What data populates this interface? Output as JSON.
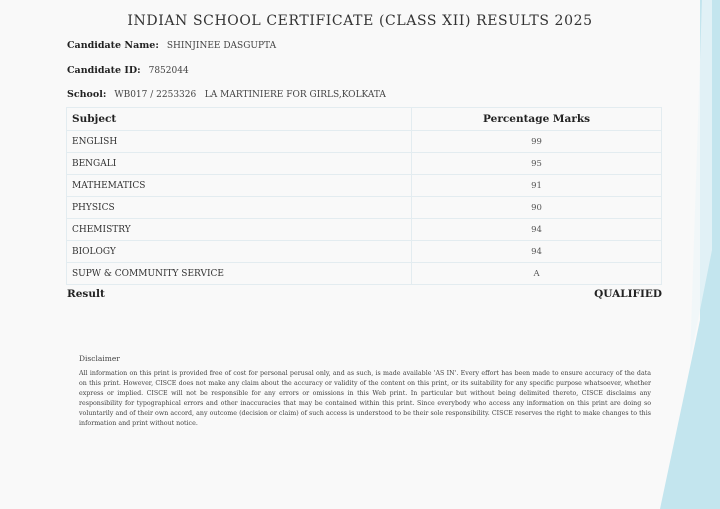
{
  "title": "INDIAN SCHOOL CERTIFICATE (CLASS XII) RESULTS 2025",
  "candidate": {
    "name_label": "Candidate Name:",
    "name": "SHINJINEE DASGUPTA",
    "id_label": "Candidate ID:",
    "id": "7852044",
    "school_label": "School:",
    "school": "WB017 / 2253326   LA MARTINIERE FOR GIRLS,KOLKATA"
  },
  "table": {
    "headers": [
      "Subject",
      "Percentage Marks"
    ],
    "rows": [
      {
        "subject": "ENGLISH",
        "marks": "99"
      },
      {
        "subject": "BENGALI",
        "marks": "95"
      },
      {
        "subject": "MATHEMATICS",
        "marks": "91"
      },
      {
        "subject": "PHYSICS",
        "marks": "90"
      },
      {
        "subject": "CHEMISTRY",
        "marks": "94"
      },
      {
        "subject": "BIOLOGY",
        "marks": "94"
      },
      {
        "subject": "SUPW & COMMUNITY SERVICE",
        "marks": "A"
      }
    ]
  },
  "result": {
    "label": "Result",
    "value": "QUALIFIED"
  },
  "disclaimer": {
    "heading": "Disclaimer",
    "text": "All information on this print is provided free of cost for personal perusal only, and as such, is made available 'AS IN'. Every effort has been made to ensure accuracy of the data on this print. However, CISCE does not make any claim about the accuracy or validity of the content on this print, or its suitability for any specific purpose whatsoever, whether express or implied. CISCE will not be responsible for any errors or omissions in this Web print. In particular but without being delimited thereto, CISCE disclaims any responsibility for typographical errors and other inaccuracies that may be contained within this print. Since everybody who access any information on this print are doing so voluntarily and of their own accord, any outcome (decision or claim) of such access is understood to be their sole responsibility. CISCE reserves the right to make changes to this information and print without notice."
  },
  "colors": {
    "accent": "#bfe3ec"
  }
}
